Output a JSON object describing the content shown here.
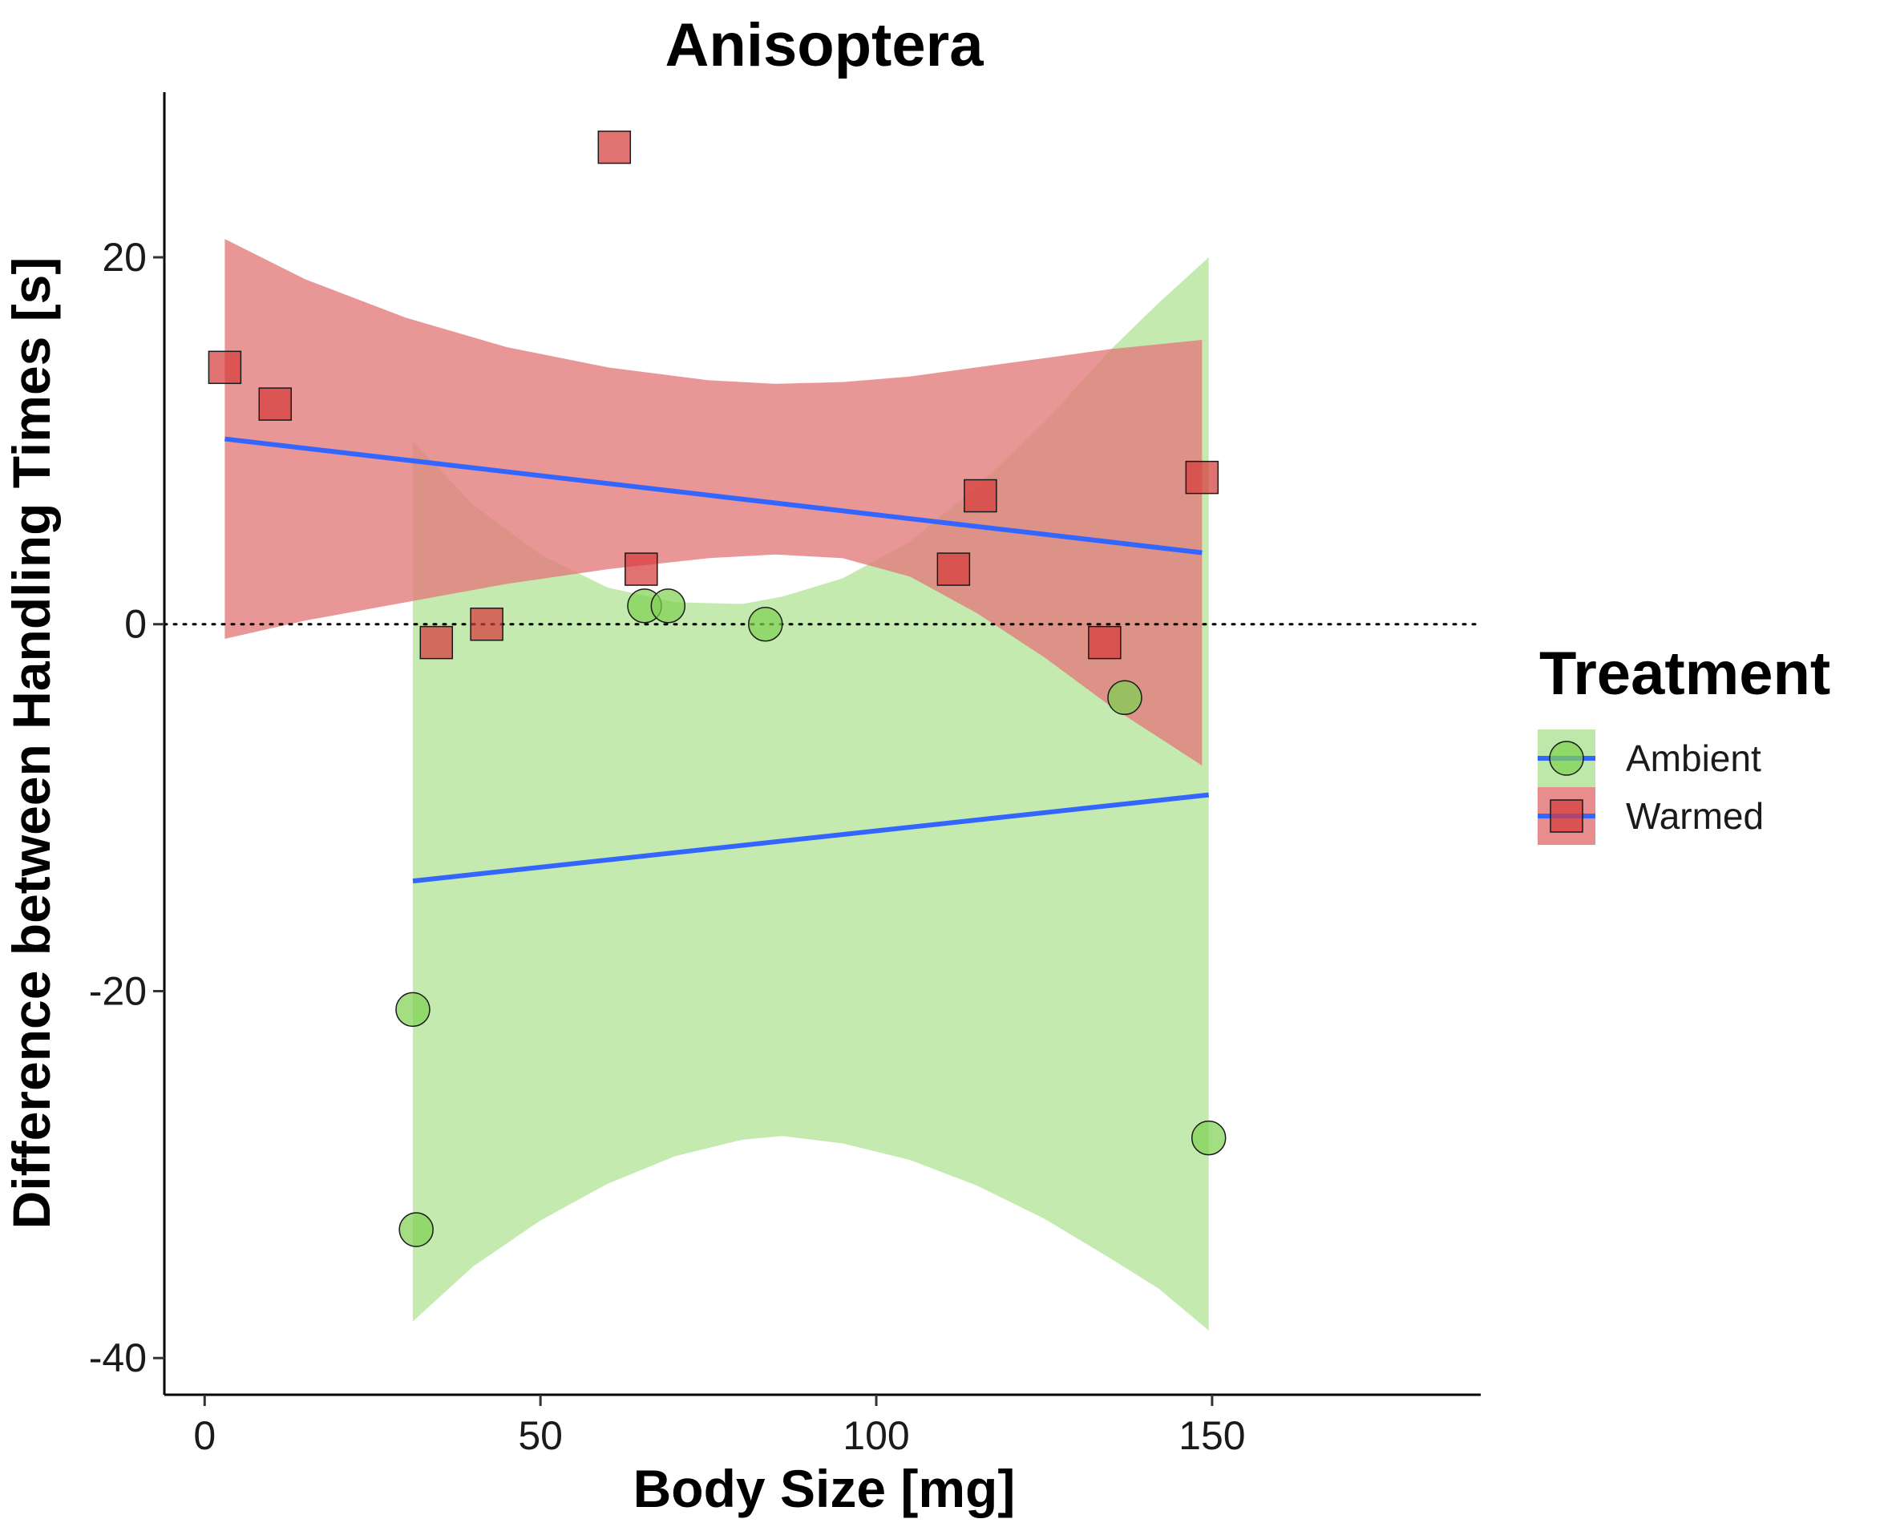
{
  "chart_data": {
    "type": "scatter",
    "title": "Anisoptera",
    "xlabel": "Body Size [mg]",
    "ylabel": "Difference between Handling Times [s]",
    "xlim": [
      -6,
      190
    ],
    "ylim": [
      -42,
      29
    ],
    "x_ticks": [
      0,
      50,
      100,
      150
    ],
    "y_ticks": [
      -40,
      -20,
      0,
      20
    ],
    "x_tick_labels": [
      "0",
      "50",
      "100",
      "150"
    ],
    "y_tick_labels": [
      "-40",
      "-20",
      "0",
      "20"
    ],
    "grid": false,
    "reference_line": {
      "y": 0,
      "style": "dotted",
      "color": "#000000"
    },
    "legend": {
      "title": "Treatment",
      "placement": "right",
      "entries": [
        "Ambient",
        "Warmed"
      ]
    },
    "fit_line_color": "#3366ff",
    "series": [
      {
        "name": "Ambient",
        "marker": "circle",
        "color": "#7fd152",
        "band_color": "#b3e49a",
        "points": [
          {
            "x": 31,
            "y": -21
          },
          {
            "x": 31.5,
            "y": -33
          },
          {
            "x": 65.5,
            "y": 1
          },
          {
            "x": 69,
            "y": 1
          },
          {
            "x": 83.5,
            "y": 0
          },
          {
            "x": 137,
            "y": -4
          },
          {
            "x": 149.5,
            "y": -28
          }
        ],
        "fit": {
          "x": [
            31,
            149.5
          ],
          "y": [
            -14,
            -9.3
          ]
        },
        "ci_band": {
          "x": [
            31,
            40,
            50,
            60,
            70,
            80,
            86,
            95,
            105,
            115,
            125,
            135,
            142,
            149.5
          ],
          "upper": [
            10,
            6.5,
            3.8,
            2.0,
            1.2,
            1.1,
            1.5,
            2.5,
            4.5,
            7.5,
            11,
            15,
            17.5,
            20
          ],
          "lower": [
            -38,
            -35,
            -32.5,
            -30.5,
            -29,
            -28.1,
            -27.9,
            -28.3,
            -29.2,
            -30.6,
            -32.4,
            -34.6,
            -36.2,
            -38.5
          ]
        }
      },
      {
        "name": "Warmed",
        "marker": "square",
        "color": "#d63b3b",
        "band_color": "#e3797a",
        "points": [
          {
            "x": 3,
            "y": 14
          },
          {
            "x": 10.5,
            "y": 12
          },
          {
            "x": 34.5,
            "y": -1
          },
          {
            "x": 42,
            "y": 0
          },
          {
            "x": 61,
            "y": 26
          },
          {
            "x": 65,
            "y": 3
          },
          {
            "x": 111.5,
            "y": 3
          },
          {
            "x": 115.5,
            "y": 7
          },
          {
            "x": 134,
            "y": -1
          },
          {
            "x": 148.5,
            "y": 8
          }
        ],
        "fit": {
          "x": [
            3,
            148.5
          ],
          "y": [
            10.1,
            3.9
          ]
        },
        "ci_band": {
          "x": [
            3,
            15,
            30,
            45,
            60,
            75,
            85,
            95,
            105,
            115,
            125,
            135,
            148.5
          ],
          "upper": [
            21,
            18.8,
            16.7,
            15.1,
            14.0,
            13.3,
            13.1,
            13.2,
            13.5,
            14.0,
            14.5,
            15.0,
            15.5
          ],
          "lower": [
            -0.8,
            0.2,
            1.2,
            2.2,
            3.0,
            3.6,
            3.8,
            3.6,
            2.6,
            0.6,
            -1.8,
            -4.5,
            -7.7
          ]
        }
      }
    ]
  }
}
